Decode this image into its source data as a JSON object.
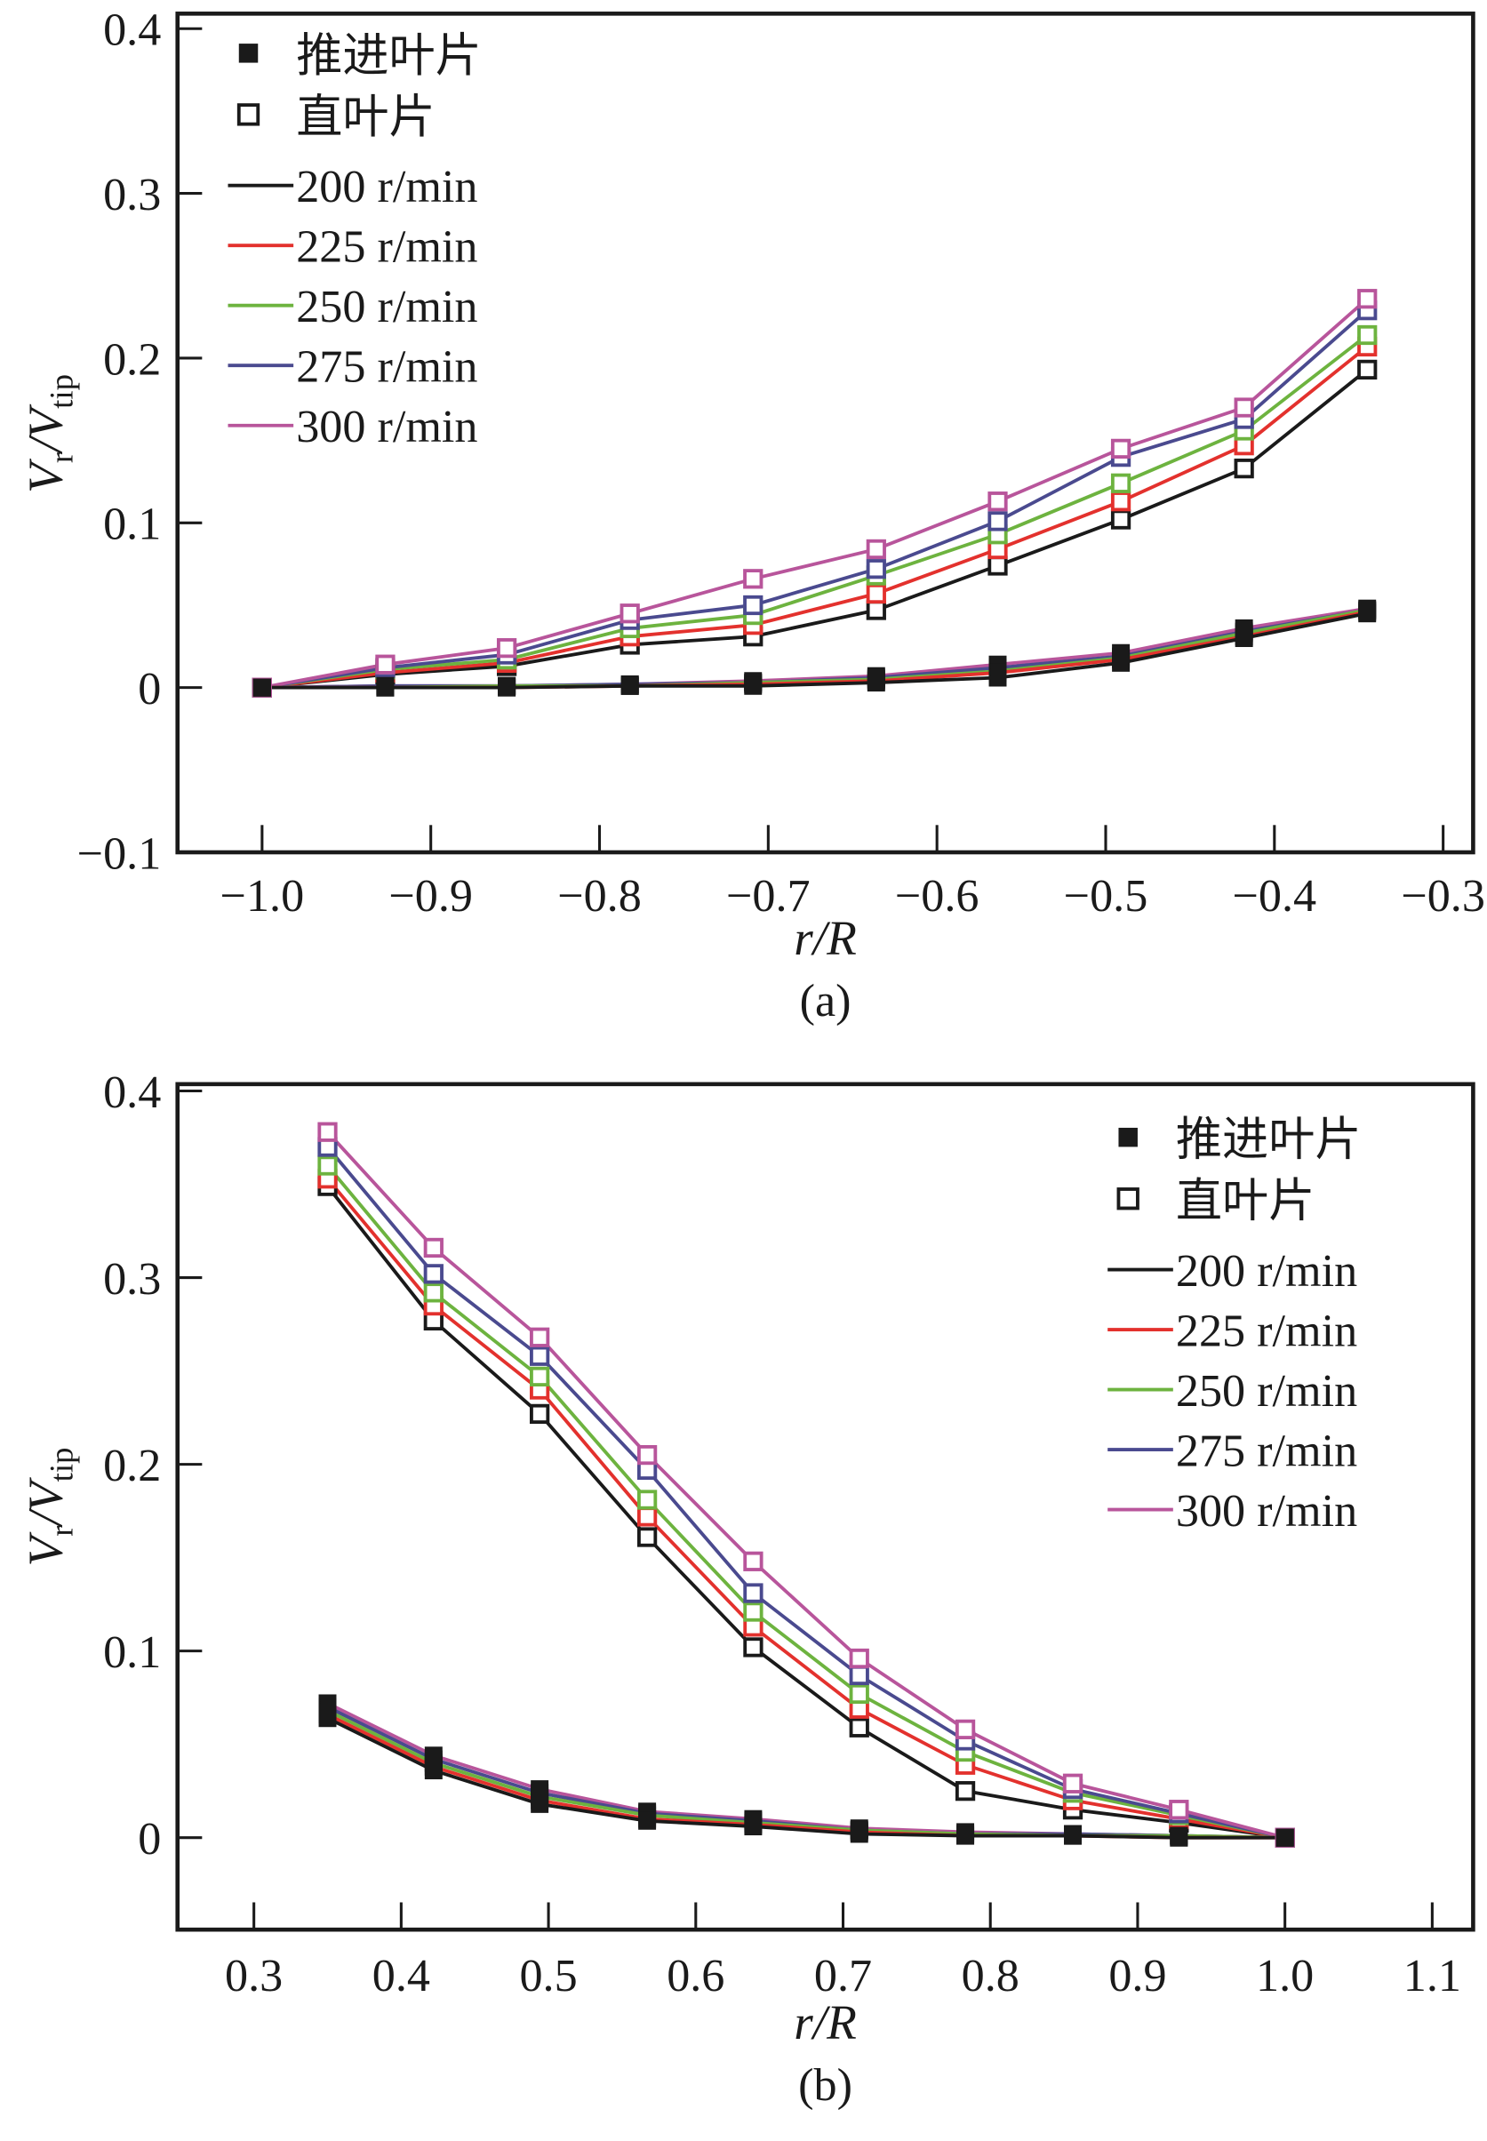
{
  "chart_data": [
    {
      "type": "line",
      "caption": "(a)",
      "xlabel": "r/R",
      "ylabel": "Vr/Vtip",
      "xlim": [
        -1.0,
        -0.3
      ],
      "ylim": [
        -0.1,
        0.4
      ],
      "xticks": [
        "-1.0",
        "-0.9",
        "-0.8",
        "-0.7",
        "-0.6",
        "-0.5",
        "-0.4",
        "-0.3"
      ],
      "yticks": [
        "-0.1",
        "0",
        "0.1",
        "0.2",
        "0.3",
        "0.4"
      ],
      "legend_position": "top-left",
      "legend": {
        "markers": [
          {
            "label": "推进叶片",
            "style": "filled-square"
          },
          {
            "label": "直叶片",
            "style": "open-square"
          }
        ],
        "lines": [
          {
            "label": "200 r/min",
            "color": "#1a1a1a"
          },
          {
            "label": "225 r/min",
            "color": "#e3312d"
          },
          {
            "label": "250 r/min",
            "color": "#6db33f"
          },
          {
            "label": "275 r/min",
            "color": "#4a4a8f"
          },
          {
            "label": "300 r/min",
            "color": "#b8559b"
          }
        ]
      },
      "x": [
        -1.0,
        -0.927,
        -0.855,
        -0.782,
        -0.709,
        -0.636,
        -0.564,
        -0.491,
        -0.418,
        -0.345
      ],
      "series": [
        {
          "name": "直叶片 200 r/min",
          "color": "#1a1a1a",
          "marker": "open",
          "values": [
            0,
            0.008,
            0.013,
            0.026,
            0.031,
            0.047,
            0.074,
            0.102,
            0.133,
            0.193
          ]
        },
        {
          "name": "直叶片 225 r/min",
          "color": "#e3312d",
          "marker": "open",
          "values": [
            0,
            0.009,
            0.015,
            0.031,
            0.038,
            0.057,
            0.084,
            0.113,
            0.147,
            0.207
          ]
        },
        {
          "name": "直叶片 250 r/min",
          "color": "#6db33f",
          "marker": "open",
          "values": [
            0,
            0.011,
            0.017,
            0.036,
            0.044,
            0.068,
            0.093,
            0.124,
            0.156,
            0.214
          ]
        },
        {
          "name": "直叶片 275 r/min",
          "color": "#4a4a8f",
          "marker": "open",
          "values": [
            0,
            0.012,
            0.02,
            0.041,
            0.05,
            0.072,
            0.101,
            0.14,
            0.163,
            0.229
          ]
        },
        {
          "name": "直叶片 300 r/min",
          "color": "#b8559b",
          "marker": "open",
          "values": [
            0,
            0.014,
            0.024,
            0.045,
            0.066,
            0.084,
            0.113,
            0.145,
            0.17,
            0.236
          ]
        },
        {
          "name": "推进叶片 300 r/min",
          "color": "#b8559b",
          "marker": "filled",
          "values": [
            0,
            0.001,
            0.001,
            0.002,
            0.004,
            0.007,
            0.014,
            0.021,
            0.036,
            0.048
          ]
        },
        {
          "name": "推进叶片 275 r/min",
          "color": "#4a4a8f",
          "marker": "filled",
          "values": [
            0,
            0.001,
            0.001,
            0.002,
            0.003,
            0.006,
            0.012,
            0.019,
            0.034,
            0.047
          ]
        },
        {
          "name": "推进叶片 250 r/min",
          "color": "#6db33f",
          "marker": "filled",
          "values": [
            0,
            0.0,
            0.001,
            0.001,
            0.003,
            0.005,
            0.01,
            0.018,
            0.033,
            0.047
          ]
        },
        {
          "name": "推进叶片 225 r/min",
          "color": "#e3312d",
          "marker": "filled",
          "values": [
            0,
            0.0,
            0.0,
            0.001,
            0.002,
            0.004,
            0.009,
            0.017,
            0.031,
            0.046
          ]
        },
        {
          "name": "推进叶片 200 r/min",
          "color": "#1a1a1a",
          "marker": "filled",
          "values": [
            0,
            0,
            0,
            0.001,
            0.001,
            0.003,
            0.006,
            0.015,
            0.03,
            0.045
          ]
        }
      ]
    },
    {
      "type": "line",
      "caption": "(b)",
      "xlabel": "r/R",
      "ylabel": "Vr/Vtip",
      "xlim": [
        0.3,
        1.1
      ],
      "ylim": [
        -0.05,
        0.4
      ],
      "xticks": [
        "0.3",
        "0.4",
        "0.5",
        "0.6",
        "0.7",
        "0.8",
        "0.9",
        "1.0",
        "1.1"
      ],
      "yticks": [
        "0",
        "0.1",
        "0.2",
        "0.3",
        "0.4"
      ],
      "legend_position": "top-right",
      "legend": {
        "markers": [
          {
            "label": "推进叶片",
            "style": "filled-square"
          },
          {
            "label": "直叶片",
            "style": "open-square"
          }
        ],
        "lines": [
          {
            "label": "200 r/min",
            "color": "#1a1a1a"
          },
          {
            "label": "225 r/min",
            "color": "#e3312d"
          },
          {
            "label": "250 r/min",
            "color": "#6db33f"
          },
          {
            "label": "275 r/min",
            "color": "#4a4a8f"
          },
          {
            "label": "300 r/min",
            "color": "#b8559b"
          }
        ]
      },
      "x": [
        0.35,
        0.422,
        0.494,
        0.567,
        0.639,
        0.711,
        0.783,
        0.856,
        0.928,
        1.0
      ],
      "series": [
        {
          "name": "直叶片 200 r/min",
          "color": "#1a1a1a",
          "marker": "open",
          "values": [
            0.349,
            0.277,
            0.227,
            0.161,
            0.102,
            0.059,
            0.025,
            0.015,
            0.008,
            0
          ]
        },
        {
          "name": "直叶片 225 r/min",
          "color": "#e3312d",
          "marker": "open",
          "values": [
            0.353,
            0.285,
            0.24,
            0.172,
            0.113,
            0.069,
            0.039,
            0.02,
            0.01,
            0
          ]
        },
        {
          "name": "直叶片 250 r/min",
          "color": "#6db33f",
          "marker": "open",
          "values": [
            0.36,
            0.292,
            0.247,
            0.181,
            0.121,
            0.077,
            0.046,
            0.024,
            0.012,
            0
          ]
        },
        {
          "name": "直叶片 275 r/min",
          "color": "#4a4a8f",
          "marker": "open",
          "values": [
            0.37,
            0.302,
            0.258,
            0.197,
            0.131,
            0.087,
            0.052,
            0.026,
            0.013,
            0
          ]
        },
        {
          "name": "直叶片 300 r/min",
          "color": "#b8559b",
          "marker": "open",
          "values": [
            0.378,
            0.316,
            0.268,
            0.205,
            0.148,
            0.096,
            0.058,
            0.029,
            0.015,
            0
          ]
        },
        {
          "name": "推进叶片 300 r/min",
          "color": "#b8559b",
          "marker": "filled",
          "values": [
            0.072,
            0.044,
            0.026,
            0.014,
            0.01,
            0.005,
            0.003,
            0.002,
            0.001,
            0
          ]
        },
        {
          "name": "推进叶片 275 r/min",
          "color": "#4a4a8f",
          "marker": "filled",
          "values": [
            0.07,
            0.042,
            0.024,
            0.013,
            0.009,
            0.004,
            0.002,
            0.002,
            0.001,
            0
          ]
        },
        {
          "name": "推进叶片 250 r/min",
          "color": "#6db33f",
          "marker": "filled",
          "values": [
            0.068,
            0.04,
            0.022,
            0.012,
            0.008,
            0.004,
            0.002,
            0.001,
            0.001,
            0
          ]
        },
        {
          "name": "推进叶片 225 r/min",
          "color": "#e3312d",
          "marker": "filled",
          "values": [
            0.066,
            0.038,
            0.02,
            0.01,
            0.007,
            0.003,
            0.001,
            0.001,
            0,
            0
          ]
        },
        {
          "name": "推进叶片 200 r/min",
          "color": "#1a1a1a",
          "marker": "filled",
          "values": [
            0.064,
            0.036,
            0.018,
            0.009,
            0.006,
            0.002,
            0.001,
            0.001,
            0,
            0
          ]
        }
      ]
    }
  ]
}
